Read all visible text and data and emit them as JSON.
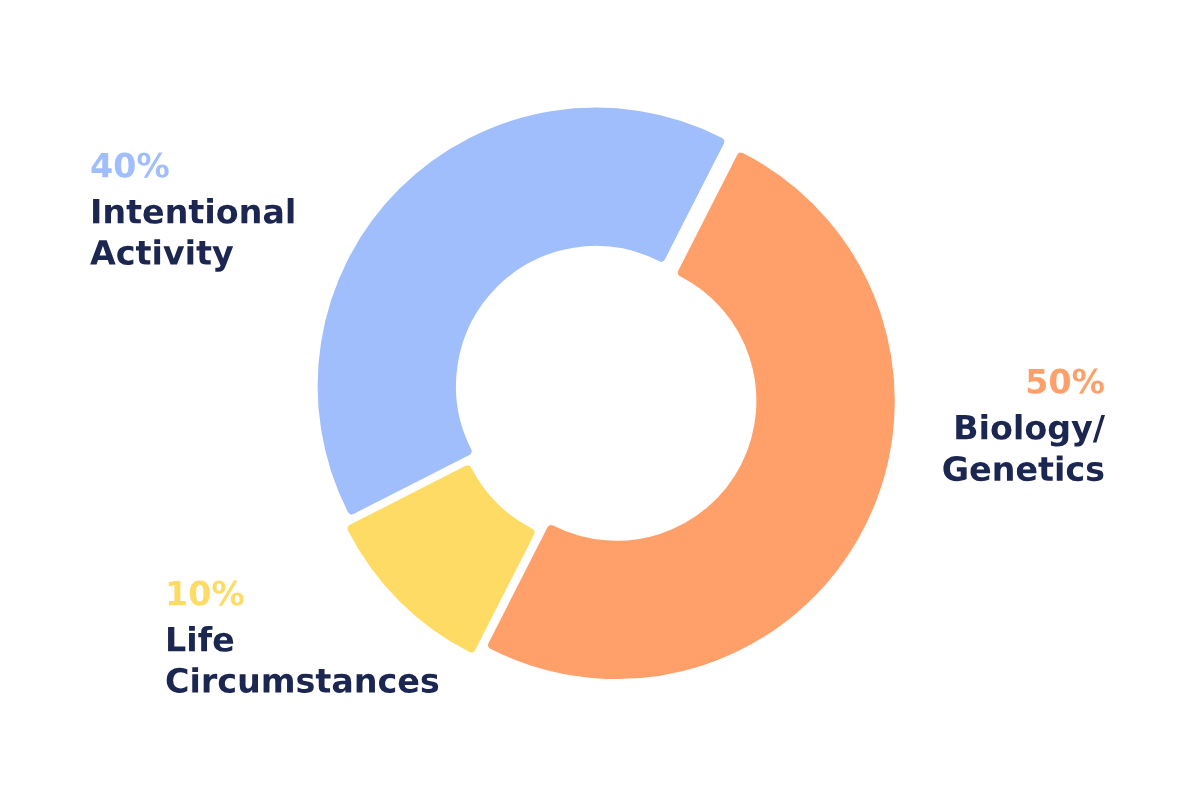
{
  "chart_data": {
    "type": "donut",
    "categories": [
      "Biology/\nGenetics",
      "Life\nCircumstances",
      "Intentional\nActivity"
    ],
    "values": [
      50,
      10,
      40
    ],
    "colors": [
      "#ffa06a",
      "#fedb65",
      "#a0bdfc"
    ],
    "value_labels": [
      "50%",
      "10%",
      "40%"
    ]
  }
}
